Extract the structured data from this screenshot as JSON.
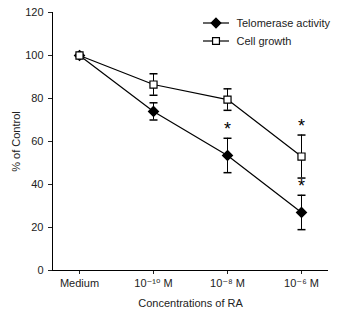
{
  "chart_data": {
    "type": "line",
    "x_label": "Concentrations of RA",
    "y_label": "% of Control",
    "categories": [
      "Medium",
      "10⁻¹⁰ M",
      "10⁻⁸ M",
      "10⁻⁶ M"
    ],
    "series": [
      {
        "name": "Telomerase activity",
        "color": "#000000",
        "marker": "diamond",
        "line_style": "solid",
        "values": [
          100,
          74,
          53.5,
          27
        ],
        "errors": [
          0,
          4,
          8,
          8
        ]
      },
      {
        "name": "Cell growth",
        "color": "#000000",
        "marker": "open-square",
        "line_style": "solid",
        "values": [
          100,
          86.5,
          79.5,
          53
        ],
        "errors": [
          0,
          5,
          5,
          10
        ]
      }
    ],
    "annotations": [
      {
        "text": "*",
        "category": "10⁻⁸ M",
        "series": "Telomerase activity"
      },
      {
        "text": "*",
        "category": "10⁻⁶ M",
        "series": "Telomerase activity"
      },
      {
        "text": "*",
        "category": "10⁻⁶ M",
        "series": "Cell growth"
      }
    ],
    "ylim": [
      0,
      120
    ],
    "yticks": [
      0,
      20,
      40,
      60,
      80,
      100,
      120
    ],
    "grid": false,
    "legend": "top-right"
  }
}
